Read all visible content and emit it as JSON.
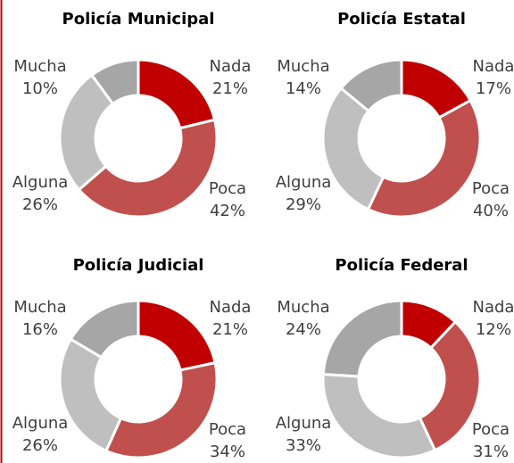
{
  "chart_data": [
    {
      "type": "doughnut",
      "title": "Policía Municipal",
      "categories": [
        "Nada",
        "Poca",
        "Alguna",
        "Mucha"
      ],
      "values": [
        21,
        42,
        26,
        10
      ],
      "value_labels": [
        "21%",
        "42%",
        "26%",
        "10%"
      ],
      "colors": [
        "#c00000",
        "#c0504d",
        "#bfbfbf",
        "#a6a6a6"
      ]
    },
    {
      "type": "doughnut",
      "title": "Policía Estatal",
      "categories": [
        "Nada",
        "Poca",
        "Alguna",
        "Mucha"
      ],
      "values": [
        17,
        40,
        29,
        14
      ],
      "value_labels": [
        "17%",
        "40%",
        "29%",
        "14%"
      ],
      "colors": [
        "#c00000",
        "#c0504d",
        "#bfbfbf",
        "#a6a6a6"
      ]
    },
    {
      "type": "doughnut",
      "title": "Policía Judicial",
      "categories": [
        "Nada",
        "Poca",
        "Alguna",
        "Mucha"
      ],
      "values": [
        21,
        34,
        26,
        16
      ],
      "value_labels": [
        "21%",
        "34%",
        "26%",
        "16%"
      ],
      "colors": [
        "#c00000",
        "#c0504d",
        "#bfbfbf",
        "#a6a6a6"
      ]
    },
    {
      "type": "doughnut",
      "title": "Policía Federal",
      "categories": [
        "Nada",
        "Poca",
        "Alguna",
        "Mucha"
      ],
      "values": [
        12,
        31,
        33,
        24
      ],
      "value_labels": [
        "12%",
        "31%",
        "33%",
        "24%"
      ],
      "colors": [
        "#c00000",
        "#c0504d",
        "#bfbfbf",
        "#a6a6a6"
      ]
    }
  ]
}
